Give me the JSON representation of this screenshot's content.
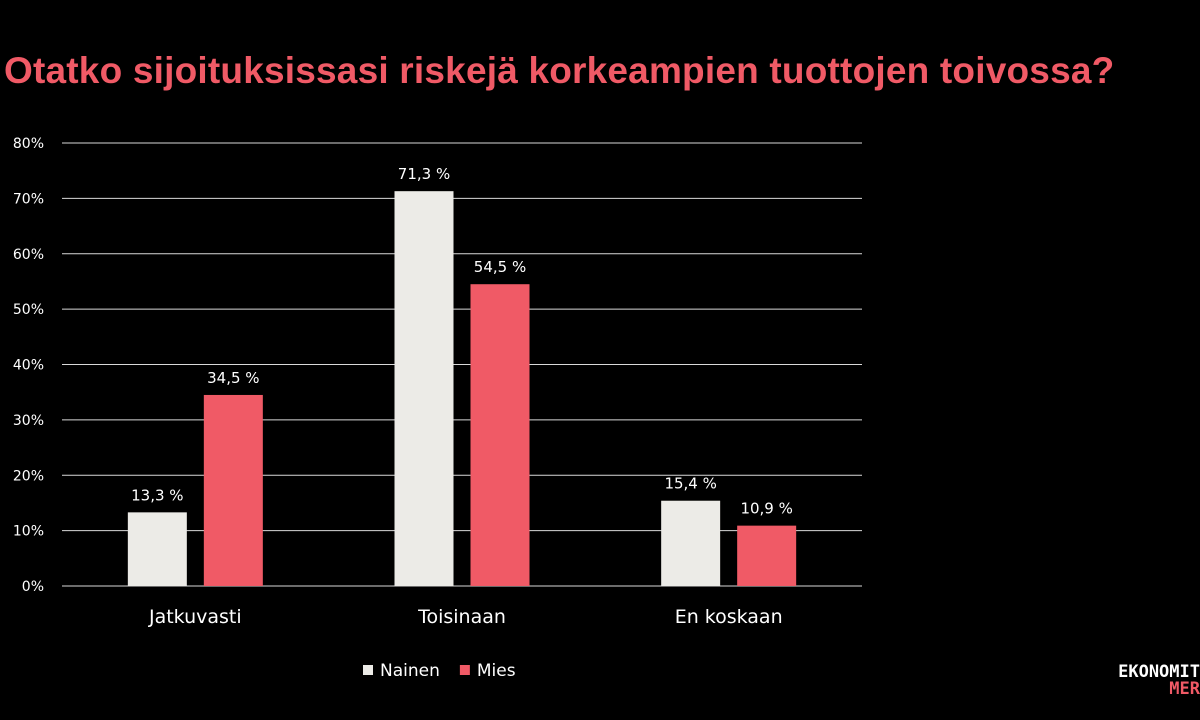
{
  "page": {
    "title": "Otatko sijoituksissasi riskejä korkeampien tuottojen toivossa?",
    "title_color": "#f05a66",
    "logo": {
      "line1": "EKONOMIT",
      "line2": "MER"
    }
  },
  "chart_data": {
    "type": "bar",
    "title": "",
    "categories": [
      "Jatkuvasti",
      "Toisinaan",
      "En koskaan"
    ],
    "series": [
      {
        "name": "Nainen",
        "color": "#ecebe7",
        "values": [
          13.3,
          71.3,
          15.4
        ],
        "labels": [
          "13,3 %",
          "71,3 %",
          "15,4 %"
        ]
      },
      {
        "name": "Mies",
        "color": "#f05a66",
        "values": [
          34.5,
          54.5,
          10.9
        ],
        "labels": [
          "34,5 %",
          "54,5 %",
          "10,9 %"
        ]
      }
    ],
    "yticks": [
      "0%",
      "10%",
      "20%",
      "30%",
      "40%",
      "50%",
      "60%",
      "70%",
      "80%"
    ],
    "ylim": [
      0,
      80
    ],
    "grid": true,
    "legend": "bottom-center",
    "gridline_color": "#d9d9d9"
  }
}
